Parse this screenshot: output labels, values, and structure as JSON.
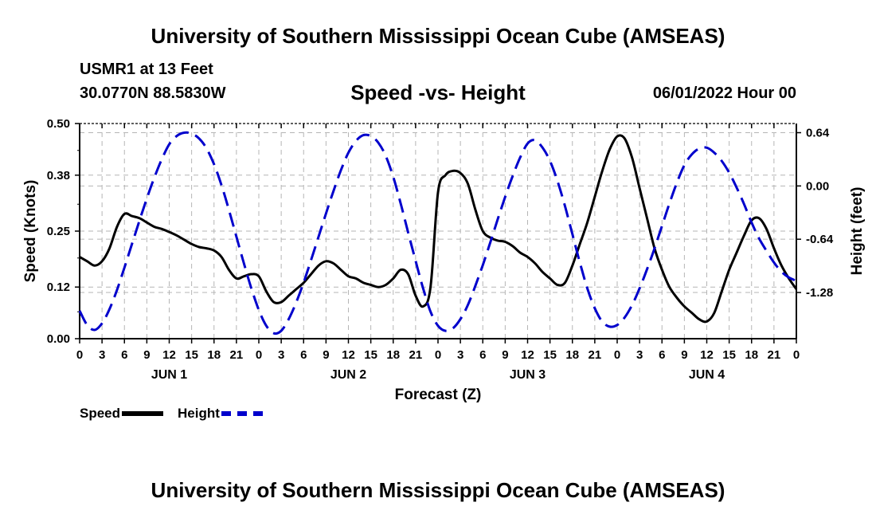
{
  "header": {
    "title": "University of Southern Mississippi Ocean Cube (AMSEAS)",
    "station": "USMR1 at 13 Feet",
    "location": "30.0770N  88.5830W",
    "datetime": "06/01/2022 Hour 00",
    "footer_title": "University of Southern Mississippi Ocean Cube (AMSEAS)"
  },
  "chart_data": {
    "type": "line",
    "title": "Speed -vs- Height",
    "xlabel": "Forecast (Z)",
    "ylabel": "Speed (Knots)",
    "y2label": "Height (feet)",
    "xlim": [
      0,
      96
    ],
    "ylim": [
      0,
      0.5
    ],
    "y2lim": [
      -1.835,
      0.75
    ],
    "yticks": [
      "0.00",
      "0.12",
      "0.25",
      "0.38",
      "0.50"
    ],
    "y2ticks": [
      "0.64",
      "0.00",
      "-0.64",
      "-1.28"
    ],
    "y2tick_values": [
      0.64,
      0.0,
      -0.64,
      -1.28
    ],
    "xtick_labels": [
      "0",
      "3",
      "6",
      "9",
      "12",
      "15",
      "18",
      "21",
      "0",
      "3",
      "6",
      "9",
      "12",
      "15",
      "18",
      "21",
      "0",
      "3",
      "6",
      "9",
      "12",
      "15",
      "18",
      "21",
      "0",
      "3",
      "6",
      "9",
      "12",
      "15",
      "18",
      "21",
      "0"
    ],
    "day_labels": [
      "JUN 1",
      "JUN 2",
      "JUN 3",
      "JUN 4"
    ],
    "grid": true,
    "legend_position": "bottom-left",
    "series": [
      {
        "name": "Speed",
        "color": "#000000",
        "axis": "left",
        "x": [
          0,
          1,
          2,
          3,
          4,
          5,
          6,
          7,
          8,
          9,
          10,
          11,
          12,
          13,
          14,
          15,
          16,
          17,
          18,
          19,
          20,
          21,
          22,
          23,
          24,
          25,
          26,
          27,
          28,
          29,
          30,
          31,
          32,
          33,
          34,
          35,
          36,
          37,
          38,
          39,
          40,
          41,
          42,
          43,
          44,
          45,
          46,
          47,
          48,
          49,
          50,
          51,
          52,
          53,
          54,
          55,
          56,
          57,
          58,
          59,
          60,
          61,
          62,
          63,
          64,
          65,
          66,
          67,
          68,
          69,
          70,
          71,
          72,
          73,
          74,
          75,
          76,
          77,
          78,
          79,
          80,
          81,
          82,
          83,
          84,
          85,
          86,
          87,
          88,
          89,
          90,
          91,
          92,
          93,
          94,
          95,
          96
        ],
        "values": [
          0.19,
          0.18,
          0.17,
          0.18,
          0.21,
          0.26,
          0.29,
          0.285,
          0.28,
          0.27,
          0.26,
          0.255,
          0.248,
          0.24,
          0.23,
          0.22,
          0.213,
          0.21,
          0.205,
          0.19,
          0.16,
          0.14,
          0.145,
          0.15,
          0.145,
          0.11,
          0.085,
          0.085,
          0.1,
          0.115,
          0.13,
          0.15,
          0.17,
          0.18,
          0.175,
          0.16,
          0.145,
          0.14,
          0.13,
          0.125,
          0.12,
          0.125,
          0.14,
          0.16,
          0.15,
          0.1,
          0.075,
          0.12,
          0.34,
          0.38,
          0.39,
          0.385,
          0.36,
          0.3,
          0.25,
          0.235,
          0.228,
          0.225,
          0.215,
          0.2,
          0.19,
          0.175,
          0.155,
          0.14,
          0.125,
          0.13,
          0.17,
          0.22,
          0.27,
          0.33,
          0.39,
          0.44,
          0.47,
          0.465,
          0.42,
          0.35,
          0.28,
          0.21,
          0.16,
          0.12,
          0.095,
          0.075,
          0.06,
          0.045,
          0.04,
          0.06,
          0.11,
          0.16,
          0.2,
          0.24,
          0.275,
          0.28,
          0.255,
          0.21,
          0.17,
          0.14,
          0.115
        ]
      },
      {
        "name": "Height",
        "color": "#0000cc",
        "axis": "right",
        "x": [
          0,
          1,
          2,
          3,
          4,
          5,
          6,
          7,
          8,
          9,
          10,
          11,
          12,
          13,
          14,
          15,
          16,
          17,
          18,
          19,
          20,
          21,
          22,
          23,
          24,
          25,
          26,
          27,
          28,
          29,
          30,
          31,
          32,
          33,
          34,
          35,
          36,
          37,
          38,
          39,
          40,
          41,
          42,
          43,
          44,
          45,
          46,
          47,
          48,
          49,
          50,
          51,
          52,
          53,
          54,
          55,
          56,
          57,
          58,
          59,
          60,
          61,
          62,
          63,
          64,
          65,
          66,
          67,
          68,
          69,
          70,
          71,
          72,
          73,
          74,
          75,
          76,
          77,
          78,
          79,
          80,
          81,
          82,
          83,
          84,
          85,
          86,
          87,
          88,
          89,
          90,
          91,
          92,
          93,
          94,
          95,
          96
        ],
        "values": [
          -1.5,
          -1.67,
          -1.73,
          -1.65,
          -1.48,
          -1.25,
          -0.98,
          -0.7,
          -0.42,
          -0.15,
          0.1,
          0.32,
          0.5,
          0.6,
          0.64,
          0.63,
          0.57,
          0.45,
          0.26,
          0.01,
          -0.29,
          -0.61,
          -0.93,
          -1.23,
          -1.49,
          -1.68,
          -1.77,
          -1.74,
          -1.6,
          -1.4,
          -1.16,
          -0.89,
          -0.61,
          -0.33,
          -0.06,
          0.19,
          0.4,
          0.54,
          0.61,
          0.6,
          0.52,
          0.36,
          0.11,
          -0.21,
          -0.56,
          -0.9,
          -1.23,
          -1.51,
          -1.68,
          -1.74,
          -1.71,
          -1.6,
          -1.43,
          -1.2,
          -0.95,
          -0.68,
          -0.4,
          -0.13,
          0.12,
          0.34,
          0.51,
          0.55,
          0.46,
          0.3,
          0.06,
          -0.24,
          -0.58,
          -0.92,
          -1.23,
          -1.47,
          -1.63,
          -1.69,
          -1.67,
          -1.58,
          -1.43,
          -1.23,
          -1.0,
          -0.75,
          -0.48,
          -0.21,
          0.04,
          0.25,
          0.38,
          0.45,
          0.46,
          0.4,
          0.3,
          0.16,
          -0.02,
          -0.22,
          -0.44,
          -0.63,
          -0.78,
          -0.92,
          -1.03,
          -1.1,
          -1.14
        ]
      }
    ]
  }
}
